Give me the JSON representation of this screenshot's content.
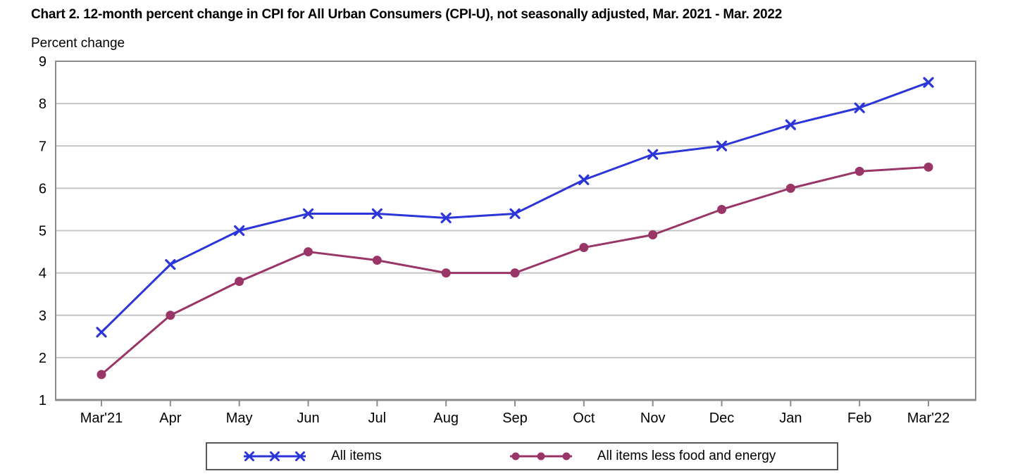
{
  "header": {
    "title": "Chart 2. 12-month percent change in CPI for All Urban Consumers (CPI-U), not seasonally adjusted, Mar. 2021 - Mar. 2022",
    "units_label": "Percent change"
  },
  "chart_data": {
    "type": "line",
    "title": "Chart 2. 12-month percent change in CPI for All Urban Consumers (CPI-U), not seasonally adjusted, Mar. 2021 - Mar. 2022",
    "xlabel": "",
    "ylabel": "Percent change",
    "categories": [
      "Mar'21",
      "Apr",
      "May",
      "Jun",
      "Jul",
      "Aug",
      "Sep",
      "Oct",
      "Nov",
      "Dec",
      "Jan",
      "Feb",
      "Mar'22"
    ],
    "series": [
      {
        "name": "All items",
        "marker": "x",
        "color": "#2b35d8",
        "values": [
          2.6,
          4.2,
          5.0,
          5.4,
          5.4,
          5.3,
          5.4,
          6.2,
          6.8,
          7.0,
          7.5,
          7.9,
          8.5
        ]
      },
      {
        "name": "All items less food and energy",
        "marker": "circle",
        "color": "#9a3567",
        "values": [
          1.6,
          3.0,
          3.8,
          4.5,
          4.3,
          4.0,
          4.0,
          4.6,
          4.9,
          5.5,
          6.0,
          6.4,
          6.5
        ]
      }
    ],
    "ylim": [
      1,
      9
    ],
    "yticks": [
      1,
      2,
      3,
      4,
      5,
      6,
      7,
      8,
      9
    ],
    "grid": true,
    "legend_position": "bottom",
    "style": {
      "grid_color": "#c6c6c6",
      "axis_color": "#8c8c8c",
      "legend_border_color": "#595959",
      "text_color": "#000000"
    }
  }
}
